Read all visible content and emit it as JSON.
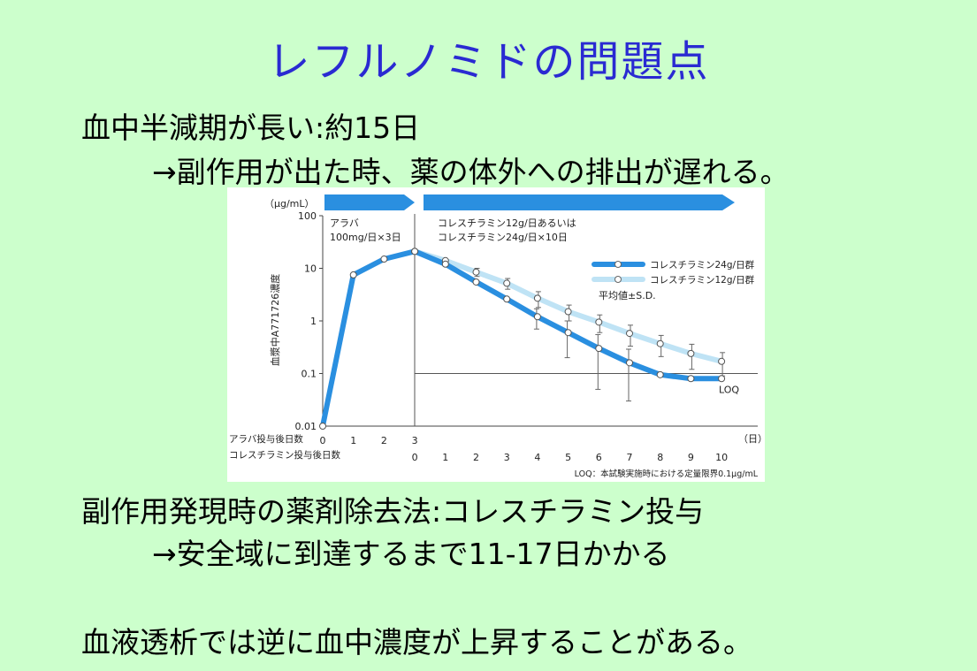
{
  "slide": {
    "title": "レフルノミドの問題点",
    "line1": "血中半減期が長い:約15日",
    "line2": "→副作用が出た時、薬の体外への排出が遅れる。",
    "line3": "副作用発現時の薬剤除去法:コレスチラミン投与",
    "line4": "→安全域に到達するまで11-17日かかる",
    "line5": "血液透析では逆に血中濃度が上昇することがある。"
  },
  "colors": {
    "background": "#ccffcc",
    "title": "#2a2ad2",
    "series_dark": "#2a8fe0",
    "series_light": "#bfe3f5",
    "phase_arrow": "#2a8fe0"
  },
  "chart_data": {
    "type": "line",
    "yscale": "log",
    "yunit": "（μg/mL）",
    "ylabel": "血漿中A771726濃度",
    "ylim": [
      0.01,
      100
    ],
    "yticks": [
      "100",
      "10",
      "1",
      "0.1",
      "0.01"
    ],
    "xlim": [
      0,
      13
    ],
    "xunit": "（日）",
    "x_rows": [
      {
        "label": "アラバ投与後日数",
        "ticks": [
          "0",
          "1",
          "2",
          "3"
        ]
      },
      {
        "label": "コレスチラミン投与後日数",
        "ticks": [
          "0",
          "1",
          "2",
          "3",
          "4",
          "5",
          "6",
          "7",
          "8",
          "9",
          "10"
        ]
      }
    ],
    "phases": [
      {
        "line1": "アラバ",
        "line2": "100mg/日×3日",
        "x_range": [
          0,
          3
        ]
      },
      {
        "line1": "コレスチラミン12g/日あるいは",
        "line2": "コレスチラミン24g/日×10日",
        "x_range": [
          3,
          13
        ]
      }
    ],
    "series": [
      {
        "name": "コレスチラミン24g/日群",
        "x": [
          0,
          1,
          2,
          3,
          4,
          5,
          6,
          7,
          8,
          9,
          10,
          11,
          12,
          13
        ],
        "y": [
          0.01,
          7.5,
          15,
          21,
          12,
          5.5,
          2.6,
          1.2,
          0.6,
          0.3,
          0.16,
          0.095,
          0.08,
          0.08
        ],
        "err": [
          0,
          0,
          0,
          0,
          0,
          0,
          0,
          0.5,
          0.4,
          0.25,
          0.13,
          0,
          0,
          0
        ]
      },
      {
        "name": "コレスチラミン12g/日群",
        "x": [
          3,
          4,
          5,
          6,
          7,
          8,
          9,
          10,
          11,
          12,
          13
        ],
        "y": [
          21,
          14,
          8.5,
          5.2,
          2.7,
          1.5,
          0.95,
          0.58,
          0.37,
          0.24,
          0.17
        ],
        "err": [
          0,
          0,
          1.5,
          1.2,
          0.9,
          0.5,
          0.35,
          0.25,
          0.16,
          0.12,
          0.08
        ]
      }
    ],
    "reference_lines": [
      {
        "y": 0.1,
        "label": "LOQ"
      }
    ],
    "annotation": "平均値±S.D.",
    "footnote": "LOQ：本試験実施時における定量限界0.1μg/mL",
    "legend_position": "top-right"
  }
}
